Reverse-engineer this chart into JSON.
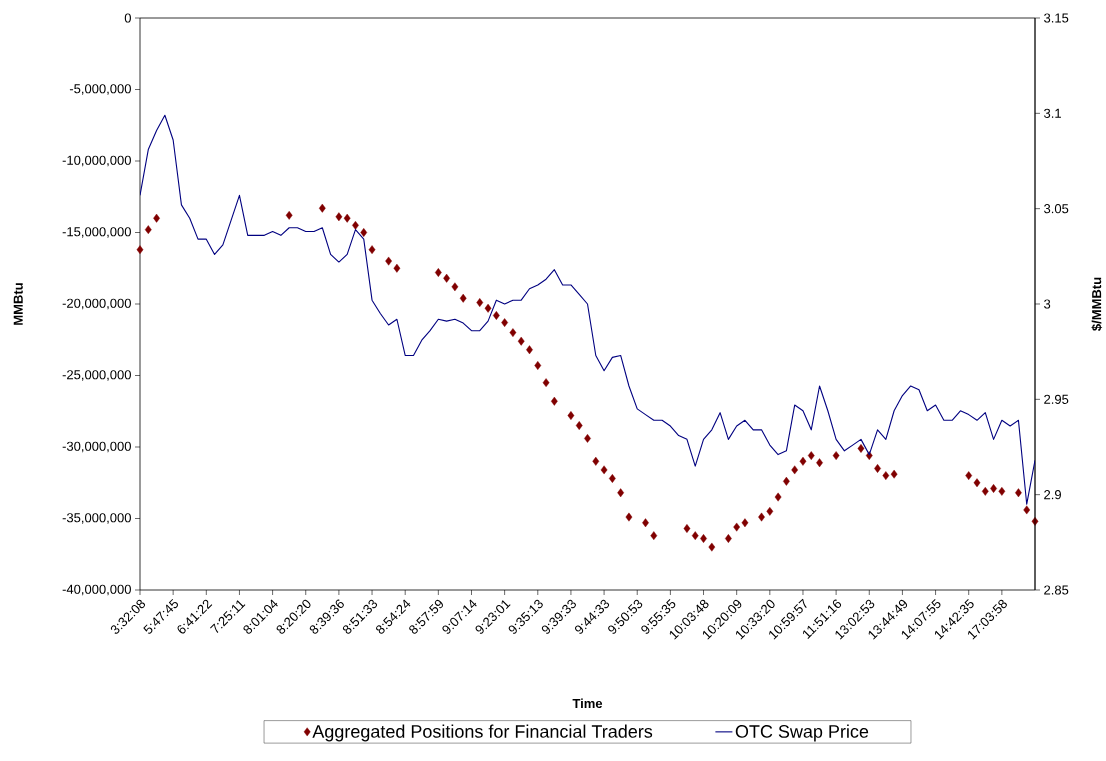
{
  "chart_data": {
    "type": "line",
    "xlabel": "Time",
    "ylabel": "MMBtu",
    "y2label": "$/MMBtu",
    "categories": [
      "3:32:08",
      null,
      null,
      null,
      "5:47:45",
      null,
      null,
      null,
      "6:41:22",
      null,
      null,
      null,
      "7:25:11",
      null,
      null,
      null,
      "8:01:04",
      null,
      null,
      null,
      "8:20:20",
      null,
      null,
      null,
      "8:39:36",
      null,
      null,
      null,
      "8:51:33",
      null,
      null,
      null,
      "8:54:24",
      null,
      null,
      null,
      "8:57:59",
      null,
      null,
      null,
      "9:07:14",
      null,
      null,
      null,
      "9:23:01",
      null,
      null,
      null,
      "9:35:13",
      null,
      null,
      null,
      "9:39:33",
      null,
      null,
      null,
      "9:44:33",
      null,
      null,
      null,
      "9:50:53",
      null,
      null,
      null,
      "9:55:35",
      null,
      null,
      null,
      "10:03:48",
      null,
      null,
      null,
      "10:20:09",
      null,
      null,
      null,
      "10:33:20",
      null,
      null,
      null,
      "10:59:57",
      null,
      null,
      null,
      "11:51:16",
      null,
      null,
      null,
      "13:02:53",
      null,
      null,
      null,
      "13:44:49",
      null,
      null,
      null,
      "14:07:55",
      null,
      null,
      null,
      "14:42:35",
      null,
      null,
      null,
      "17:03:58",
      null,
      null,
      null,
      null
    ],
    "series": [
      {
        "name": "Aggregated Positions for Financial Traders",
        "type": "scatter",
        "marker": "diamond",
        "color": "#800000",
        "values": [
          -16200000,
          -14800000,
          -14000000,
          null,
          null,
          null,
          null,
          null,
          null,
          null,
          null,
          null,
          null,
          null,
          null,
          null,
          null,
          null,
          -13800000,
          null,
          null,
          null,
          -13300000,
          null,
          -13900000,
          -14000000,
          -14500000,
          -15000000,
          -16200000,
          null,
          -17000000,
          -17500000,
          null,
          null,
          null,
          null,
          -17800000,
          -18200000,
          -18800000,
          -19600000,
          null,
          -19900000,
          -20300000,
          -20800000,
          -21300000,
          -22000000,
          -22600000,
          -23200000,
          -24300000,
          -25500000,
          -26800000,
          null,
          -27800000,
          -28500000,
          -29400000,
          -31000000,
          -31600000,
          -32200000,
          -33200000,
          -34900000,
          null,
          -35300000,
          -36200000,
          null,
          null,
          null,
          -35700000,
          -36200000,
          -36400000,
          -37000000,
          null,
          -36400000,
          -35600000,
          -35300000,
          null,
          -34900000,
          -34500000,
          -33500000,
          -32400000,
          -31600000,
          -31000000,
          -30600000,
          -31100000,
          null,
          -30600000,
          null,
          null,
          -30100000,
          -30600000,
          -31500000,
          -32000000,
          -31900000,
          null,
          null,
          null,
          null,
          null,
          null,
          null,
          null,
          -32000000,
          -32500000,
          -33100000,
          -32900000,
          -33100000,
          null,
          -33200000,
          -34400000,
          -35200000
        ]
      },
      {
        "name": "OTC Swap Price",
        "marker": "none",
        "axis": "y2",
        "color": "#000080",
        "values": [
          3.057,
          3.081,
          3.091,
          3.099,
          3.086,
          3.052,
          3.045,
          3.034,
          3.034,
          3.026,
          3.031,
          3.044,
          3.057,
          3.036,
          3.036,
          3.036,
          3.038,
          3.036,
          3.04,
          3.04,
          3.038,
          3.038,
          3.04,
          3.026,
          3.022,
          3.026,
          3.039,
          3.034,
          3.002,
          2.995,
          2.989,
          2.992,
          2.973,
          2.973,
          2.981,
          2.986,
          2.992,
          2.991,
          2.992,
          2.99,
          2.986,
          2.986,
          2.991,
          3.002,
          3.0,
          3.002,
          3.002,
          3.008,
          3.01,
          3.013,
          3.018,
          3.01,
          3.01,
          3.005,
          3.0,
          2.973,
          2.965,
          2.972,
          2.973,
          2.957,
          2.945,
          2.942,
          2.939,
          2.939,
          2.936,
          2.931,
          2.929,
          2.915,
          2.929,
          2.934,
          2.943,
          2.929,
          2.936,
          2.939,
          2.934,
          2.934,
          2.926,
          2.921,
          2.923,
          2.947,
          2.944,
          2.934,
          2.957,
          2.944,
          2.929,
          2.923,
          2.926,
          2.929,
          2.921,
          2.934,
          2.929,
          2.944,
          2.952,
          2.957,
          2.955,
          2.944,
          2.947,
          2.939,
          2.939,
          2.944,
          2.942,
          2.939,
          2.943,
          2.929,
          2.939,
          2.936,
          2.939,
          2.895,
          2.918
        ]
      }
    ],
    "ylim": [
      -40000000,
      0
    ],
    "yticks": [
      {
        "value": -40000000,
        "label": "-40,000,000"
      },
      {
        "value": -35000000,
        "label": "-35,000,000"
      },
      {
        "value": -30000000,
        "label": "-30,000,000"
      },
      {
        "value": -25000000,
        "label": "-25,000,000"
      },
      {
        "value": -20000000,
        "label": "-20,000,000"
      },
      {
        "value": -15000000,
        "label": "-15,000,000"
      },
      {
        "value": -10000000,
        "label": "-10,000,000"
      },
      {
        "value": -5000000,
        "label": "-5,000,000"
      },
      0
    ],
    "y2lim": [
      2.85,
      3.15
    ],
    "y2ticks": [
      2.85,
      2.9,
      2.95,
      3,
      3.05,
      3.1,
      3.15
    ],
    "legend": "bottom"
  }
}
